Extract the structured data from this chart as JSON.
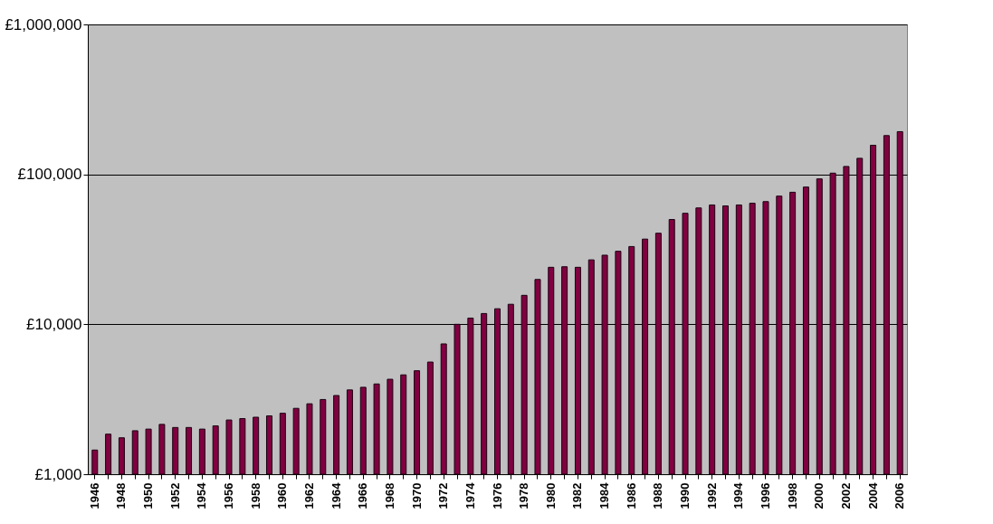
{
  "chart_data": {
    "type": "bar",
    "categories": [
      "1946",
      null,
      "1948",
      null,
      "1950",
      null,
      "1952",
      null,
      "1954",
      null,
      "1956",
      null,
      "1958",
      null,
      "1960",
      null,
      "1962",
      null,
      "1964",
      null,
      "1966",
      null,
      "1968",
      null,
      "1970",
      null,
      "1972",
      null,
      "1974",
      null,
      "1976",
      null,
      "1978",
      null,
      "1980",
      null,
      "1982",
      null,
      "1984",
      null,
      "1986",
      null,
      "1988",
      null,
      "1990",
      null,
      "1992",
      null,
      "1994",
      null,
      "1996",
      null,
      "1998",
      null,
      "2000",
      null,
      "2002",
      null,
      "2004",
      null,
      "2006"
    ],
    "values": [
      1450,
      1850,
      1750,
      1950,
      2000,
      2150,
      2050,
      2050,
      2000,
      2100,
      2300,
      2350,
      2400,
      2450,
      2550,
      2750,
      2950,
      3150,
      3350,
      3650,
      3800,
      4000,
      4300,
      4600,
      4900,
      5600,
      7400,
      10000,
      11000,
      11800,
      12700,
      13600,
      15600,
      19900,
      24000,
      24200,
      24000,
      26900,
      28900,
      30700,
      33000,
      37000,
      40500,
      50000,
      55000,
      59700,
      62500,
      61600,
      62500,
      64200,
      65800,
      71600,
      76000,
      82300,
      93300,
      101900,
      112900,
      128000,
      156300,
      181400,
      192700
    ],
    "color": "#800040",
    "log": true,
    "ylim": [
      1000,
      1000000
    ],
    "yticks": [
      {
        "value": 1000,
        "label": "£1,000"
      },
      {
        "value": 10000,
        "label": "£10,000"
      },
      {
        "value": 100000,
        "label": "£100,000"
      },
      {
        "value": 1000000,
        "label": "£1,000,000"
      }
    ],
    "grid": "y"
  }
}
